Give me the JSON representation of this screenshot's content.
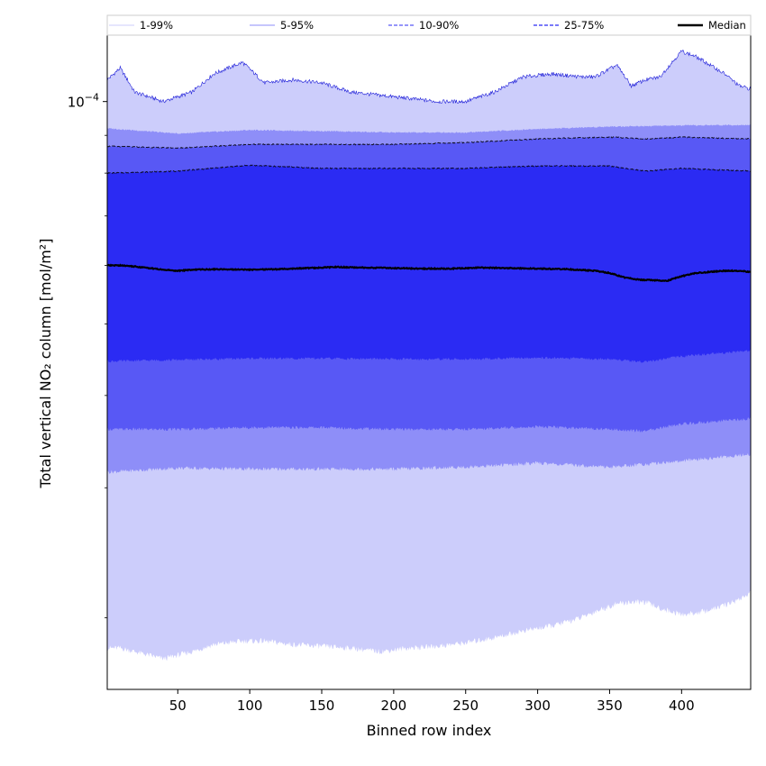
{
  "chart_data": {
    "type": "area",
    "title": "",
    "xlabel": "Binned row index",
    "ylabel": "Total vertical NO₂ column [mol/m²]",
    "xlim": [
      1,
      448
    ],
    "xticks": [
      50,
      100,
      150,
      200,
      250,
      300,
      350,
      400
    ],
    "ylim": [
      1.6e-05,
      0.000123
    ],
    "yscale": "log",
    "yticks": [
      {
        "value": 0.0001,
        "base": "10",
        "exponent": "−4"
      }
    ],
    "grid": false,
    "legend_position": "top (above plot, single row)",
    "legend": [
      {
        "label": "1-99%",
        "color": "#cccdfb",
        "style": "solid-thin"
      },
      {
        "label": "5-95%",
        "color": "#8e8ef8",
        "style": "solid-thin"
      },
      {
        "label": "10-90%",
        "color": "#5858f5",
        "style": "dashed"
      },
      {
        "label": "25-75%",
        "color": "#2b2bf3",
        "style": "dashed"
      },
      {
        "label": "Median",
        "color": "#000000",
        "style": "solid-thick"
      }
    ],
    "bands": [
      {
        "name": "1-99%",
        "color": "#cccdfb",
        "edge": "#1c1cd8",
        "x": [
          1,
          10,
          20,
          40,
          60,
          75,
          95,
          110,
          130,
          150,
          170,
          190,
          210,
          230,
          250,
          270,
          290,
          310,
          330,
          340,
          355,
          365,
          375,
          385,
          400,
          410,
          420,
          430,
          440,
          448
        ],
        "upper": [
          0.000107,
          0.000111,
          0.000103,
          0.0001,
          0.000103,
          0.000109,
          0.000113,
          0.000106,
          0.000107,
          0.000106,
          0.000103,
          0.000102,
          0.000101,
          0.0001,
          0.0001,
          0.000103,
          0.000108,
          0.000109,
          0.000108,
          0.000108,
          0.000112,
          0.000105,
          0.000107,
          0.000108,
          0.000117,
          0.000115,
          0.000112,
          0.000109,
          0.000105,
          0.000104
        ],
        "lower": [
          1.82e-05,
          1.82e-05,
          1.8e-05,
          1.76e-05,
          1.8e-05,
          1.84e-05,
          1.86e-05,
          1.86e-05,
          1.84e-05,
          1.83e-05,
          1.82e-05,
          1.8e-05,
          1.82e-05,
          1.83e-05,
          1.85e-05,
          1.88e-05,
          1.92e-05,
          1.95e-05,
          2e-05,
          2.04e-05,
          2.09e-05,
          2.1e-05,
          2.1e-05,
          2.06e-05,
          2.02e-05,
          2.03e-05,
          2.05e-05,
          2.08e-05,
          2.12e-05,
          2.16e-05
        ]
      },
      {
        "name": "5-95%",
        "color": "#8e8ef8",
        "x": [
          1,
          50,
          100,
          150,
          200,
          250,
          300,
          350,
          400,
          448
        ],
        "upper": [
          9.2e-05,
          9.05e-05,
          9.15e-05,
          9.12e-05,
          9.08e-05,
          9.08e-05,
          9.18e-05,
          9.25e-05,
          9.28e-05,
          9.3e-05
        ],
        "lower": [
          3.15e-05,
          3.19e-05,
          3.18e-05,
          3.18e-05,
          3.18e-05,
          3.2e-05,
          3.24e-05,
          3.2e-05,
          3.26e-05,
          3.33e-05
        ]
      },
      {
        "name": "10-90%",
        "color": "#5858f5",
        "x": [
          1,
          50,
          100,
          150,
          200,
          250,
          300,
          350,
          375,
          400,
          448
        ],
        "upper": [
          8.7e-05,
          8.65e-05,
          8.75e-05,
          8.75e-05,
          8.75e-05,
          8.8e-05,
          8.9e-05,
          8.95e-05,
          8.9e-05,
          8.95e-05,
          8.9e-05
        ],
        "lower": [
          3.6e-05,
          3.6e-05,
          3.62e-05,
          3.62e-05,
          3.6e-05,
          3.6e-05,
          3.63e-05,
          3.6e-05,
          3.58e-05,
          3.66e-05,
          3.72e-05
        ]
      },
      {
        "name": "25-75%",
        "color": "#2b2bf3",
        "x": [
          1,
          50,
          100,
          150,
          200,
          250,
          300,
          350,
          375,
          400,
          448
        ],
        "upper": [
          8e-05,
          8.05e-05,
          8.2e-05,
          8.12e-05,
          8.12e-05,
          8.12e-05,
          8.18e-05,
          8.18e-05,
          8.05e-05,
          8.12e-05,
          8.05e-05
        ],
        "lower": [
          4.45e-05,
          4.47e-05,
          4.49e-05,
          4.49e-05,
          4.48e-05,
          4.48e-05,
          4.5e-05,
          4.48e-05,
          4.44e-05,
          4.52e-05,
          4.6e-05
        ]
      }
    ],
    "series": [
      {
        "name": "Median",
        "color": "#000000",
        "x": [
          1,
          10,
          20,
          30,
          40,
          50,
          60,
          80,
          100,
          120,
          140,
          160,
          180,
          200,
          220,
          240,
          260,
          280,
          300,
          320,
          340,
          350,
          360,
          370,
          380,
          390,
          400,
          410,
          420,
          430,
          440,
          448
        ],
        "values": [
          6e-05,
          6e-05,
          5.98e-05,
          5.95e-05,
          5.92e-05,
          5.9e-05,
          5.92e-05,
          5.93e-05,
          5.92e-05,
          5.93e-05,
          5.95e-05,
          5.97e-05,
          5.96e-05,
          5.95e-05,
          5.94e-05,
          5.94e-05,
          5.96e-05,
          5.95e-05,
          5.94e-05,
          5.93e-05,
          5.9e-05,
          5.86e-05,
          5.78e-05,
          5.74e-05,
          5.73e-05,
          5.72e-05,
          5.8e-05,
          5.86e-05,
          5.88e-05,
          5.9e-05,
          5.9e-05,
          5.88e-05
        ]
      }
    ],
    "percentile_lines": [
      {
        "name": "10-90%",
        "color": "#5858f5",
        "dash": "4,2",
        "of": "10-90%",
        "edge": "upper"
      },
      {
        "name": "25-75%",
        "color": "#2b2bf3",
        "dash": "4,2",
        "of": "25-75%",
        "edge": "upper"
      }
    ]
  }
}
